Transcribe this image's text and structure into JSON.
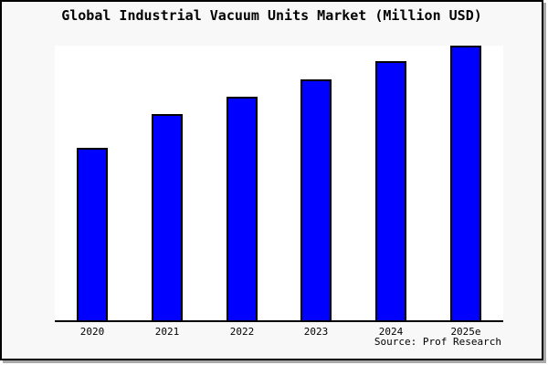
{
  "frame": {
    "background": "#f8f8f8",
    "border_color": "#000000",
    "shadow_color": "#a9a9a9",
    "plot_background": "#ffffff"
  },
  "header": {
    "title": "Global Industrial Vacuum Units Market (Million USD)"
  },
  "footer": {
    "source": "Source: Prof Research"
  },
  "chart_data": {
    "type": "bar",
    "title": "Global Industrial Vacuum Units Market (Million USD)",
    "categories": [
      "2020",
      "2021",
      "2022",
      "2023",
      "2024",
      "2025e"
    ],
    "values": [
      62.8,
      75.1,
      81.5,
      87.7,
      94.4,
      100
    ],
    "ylim": [
      0,
      100
    ],
    "value_note": "no y-axis scale shown; values estimated relative to tallest bar (2025e = 100)",
    "xlabel": "",
    "ylabel": "",
    "grid": false,
    "legend": false,
    "y_axis_shown": false,
    "bar_color": "#0000ff",
    "bar_border_color": "#000000",
    "axis_line_color": "#000000",
    "source": "Source: Prof Research"
  }
}
